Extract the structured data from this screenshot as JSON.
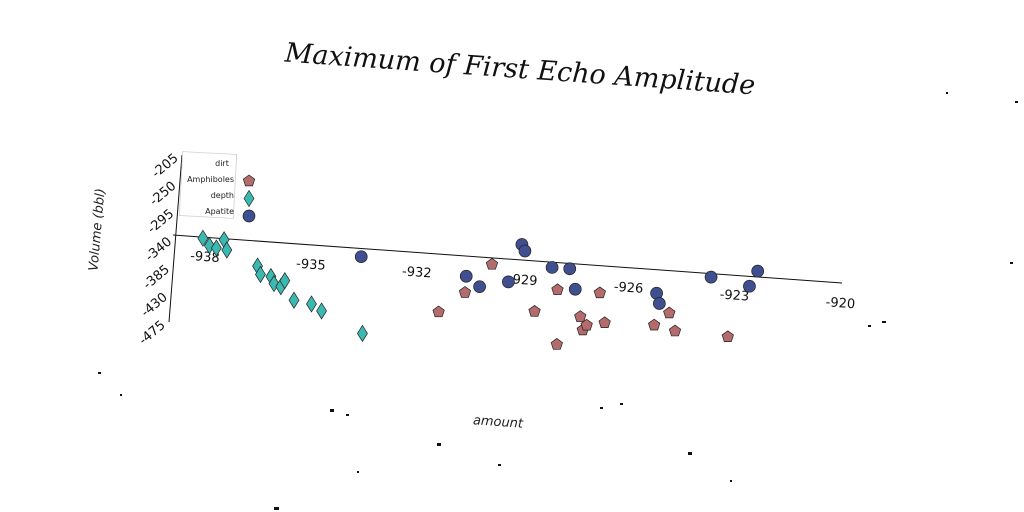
{
  "chart_data": {
    "type": "scatter",
    "title": "Maximum of First Echo Amplitude",
    "xlabel": "amount",
    "ylabel": "Volume (bbl)",
    "xlim": [
      -938,
      -920
    ],
    "ylim": [
      -475,
      -205
    ],
    "xticks": [
      "-938",
      "-935",
      "-932",
      "-929",
      "-926",
      "-923",
      "-920"
    ],
    "yticks": [
      "-205",
      "-250",
      "-295",
      "-340",
      "-385",
      "-430",
      "-475"
    ],
    "legend": {
      "position": "top-left",
      "title": "dirt",
      "entries": [
        "Amphiboles",
        "depth",
        "Apatite"
      ]
    },
    "series": [
      {
        "name": "Amphiboles",
        "marker": "pentagon",
        "color": "#b36b6b",
        "points": [
          [
            -930.5,
            -398
          ],
          [
            -929.8,
            -350
          ],
          [
            -928.5,
            -420
          ],
          [
            -927.9,
            -383
          ],
          [
            -927.8,
            -470
          ],
          [
            -927.2,
            -423
          ],
          [
            -927.1,
            -444
          ],
          [
            -927.0,
            -436
          ],
          [
            -926.7,
            -383
          ],
          [
            -926.5,
            -430
          ],
          [
            -925.1,
            -428
          ],
          [
            -924.7,
            -407
          ],
          [
            -924.5,
            -435
          ],
          [
            -923.0,
            -438
          ],
          [
            -931.2,
            -432
          ]
        ]
      },
      {
        "name": "depth",
        "marker": "diamond",
        "color": "#3bb8b0",
        "points": [
          [
            -938.0,
            -342
          ],
          [
            -937.8,
            -353
          ],
          [
            -937.6,
            -356
          ],
          [
            -937.4,
            -342
          ],
          [
            -937.3,
            -358
          ],
          [
            -936.4,
            -380
          ],
          [
            -936.3,
            -393
          ],
          [
            -936.0,
            -395
          ],
          [
            -935.9,
            -406
          ],
          [
            -935.7,
            -410
          ],
          [
            -935.6,
            -400
          ],
          [
            -935.3,
            -430
          ],
          [
            -934.8,
            -434
          ],
          [
            -934.5,
            -444
          ],
          [
            -933.3,
            -475
          ]
        ]
      },
      {
        "name": "Apatite",
        "marker": "circle",
        "color": "#3f4f8f",
        "points": [
          [
            -933.5,
            -353
          ],
          [
            -930.5,
            -372
          ],
          [
            -930.1,
            -387
          ],
          [
            -929.3,
            -376
          ],
          [
            -929.0,
            -315
          ],
          [
            -928.9,
            -325
          ],
          [
            -928.1,
            -348
          ],
          [
            -927.6,
            -348
          ],
          [
            -927.4,
            -380
          ],
          [
            -925.1,
            -377
          ],
          [
            -925.0,
            -393
          ],
          [
            -923.6,
            -345
          ],
          [
            -922.5,
            -355
          ],
          [
            -922.3,
            -330
          ]
        ]
      }
    ]
  }
}
